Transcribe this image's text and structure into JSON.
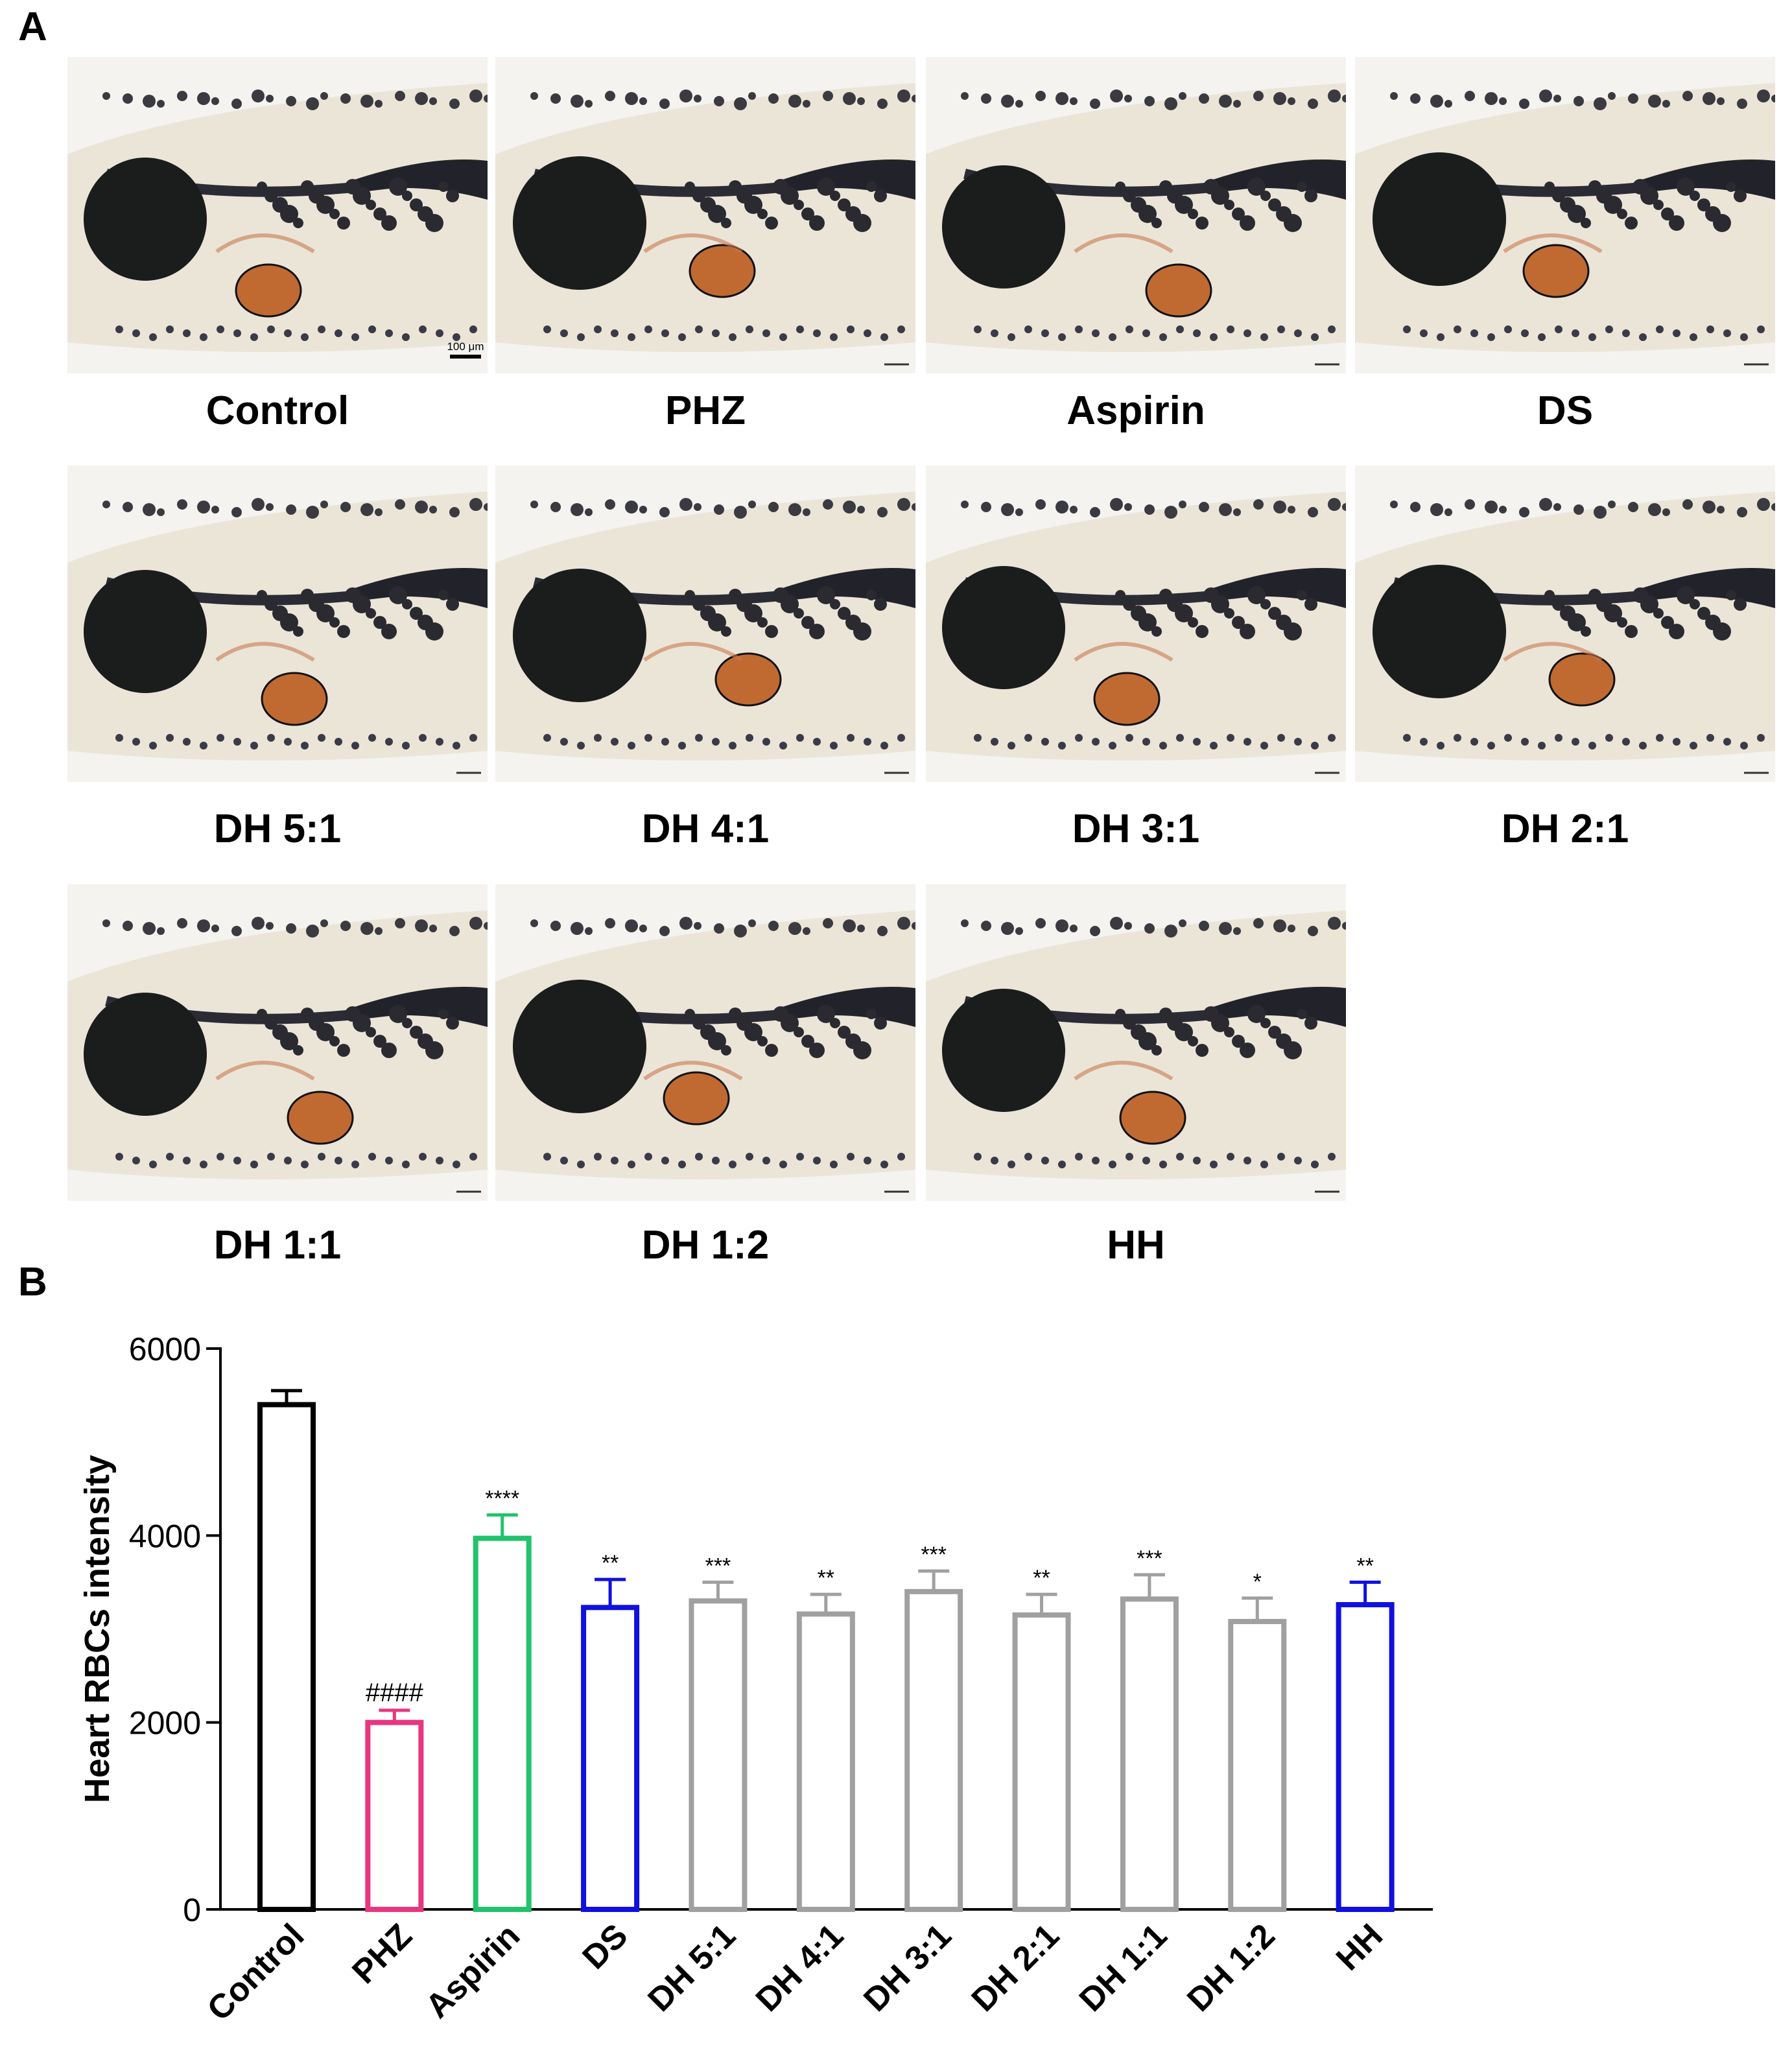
{
  "panel_a": {
    "letter": "A",
    "images": [
      {
        "caption": "Control",
        "scale_bar": "100 μm"
      },
      {
        "caption": "PHZ"
      },
      {
        "caption": "Aspirin"
      },
      {
        "caption": "DS"
      },
      {
        "caption": "DH 5:1"
      },
      {
        "caption": "DH 4:1"
      },
      {
        "caption": "DH 3:1"
      },
      {
        "caption": "DH 2:1"
      },
      {
        "caption": "DH 1:1"
      },
      {
        "caption": "DH 1:2"
      },
      {
        "caption": "HH"
      }
    ]
  },
  "panel_b": {
    "letter": "B"
  },
  "chart_data": {
    "type": "bar",
    "title": "",
    "xlabel": "",
    "ylabel": "Heart RBCs intensity",
    "ylim": [
      0,
      6000
    ],
    "yticks": [
      0,
      2000,
      4000,
      6000
    ],
    "grid": false,
    "categories": [
      "Control",
      "PHZ",
      "Aspirin",
      "DS",
      "DH 5:1",
      "DH 4:1",
      "DH 3:1",
      "DH 2:1",
      "DH 1:1",
      "DH 1:2",
      "HH"
    ],
    "values": [
      5400,
      2000,
      3970,
      3230,
      3300,
      3160,
      3400,
      3150,
      3320,
      3080,
      3260
    ],
    "errors": [
      150,
      130,
      250,
      300,
      200,
      210,
      220,
      220,
      260,
      250,
      240
    ],
    "annotations": [
      "",
      "####",
      "****",
      "**",
      "***",
      "**",
      "***",
      "**",
      "***",
      "*",
      "**"
    ],
    "colors": [
      "#000000",
      "#e8377f",
      "#22c36a",
      "#1010e0",
      "#a0a0a0",
      "#a0a0a0",
      "#a0a0a0",
      "#a0a0a0",
      "#a0a0a0",
      "#a0a0a0",
      "#1010e0"
    ]
  }
}
